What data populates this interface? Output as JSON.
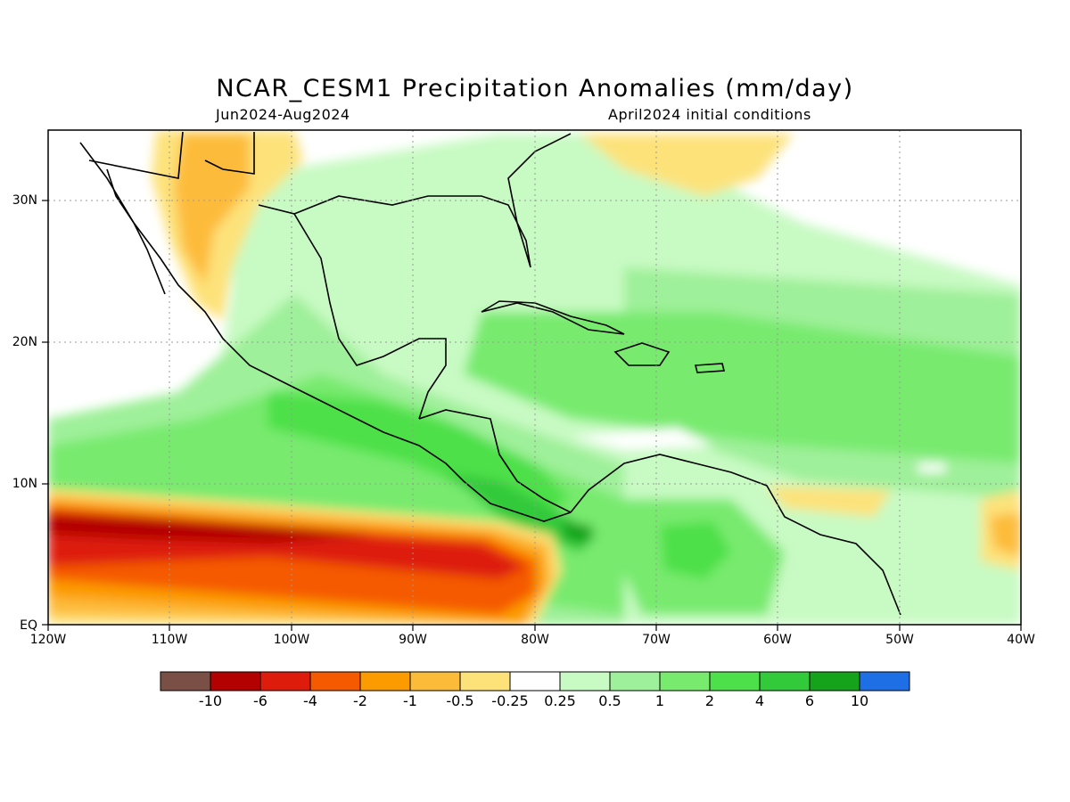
{
  "header": {
    "title": "NCAR_CESM1 Precipitation Anomalies (mm/day)",
    "period": "Jun2024-Aug2024",
    "init": "April2024 initial conditions"
  },
  "map": {
    "lon_range": [
      -120,
      -40
    ],
    "lat_range": [
      0,
      35
    ],
    "x_ticks": [
      "120W",
      "110W",
      "100W",
      "90W",
      "80W",
      "70W",
      "60W",
      "50W",
      "40W"
    ],
    "y_ticks": [
      "EQ",
      "10N",
      "20N",
      "30N"
    ],
    "grid": "dotted"
  },
  "colorbar": {
    "colors": [
      "#7a5046",
      "#b30000",
      "#dd1c0b",
      "#f55a00",
      "#fb9b00",
      "#fdbb3a",
      "#fde27a",
      "#ffffff",
      "#c8fac3",
      "#9ff09a",
      "#78ea6e",
      "#4ee04a",
      "#32c93a",
      "#14a31a",
      "#1e6fe6"
    ],
    "labels": [
      "-10",
      "-6",
      "-4",
      "-2",
      "-1",
      "-0.5",
      "-0.25",
      "0.25",
      "0.5",
      "1",
      "2",
      "4",
      "6",
      "10"
    ]
  }
}
